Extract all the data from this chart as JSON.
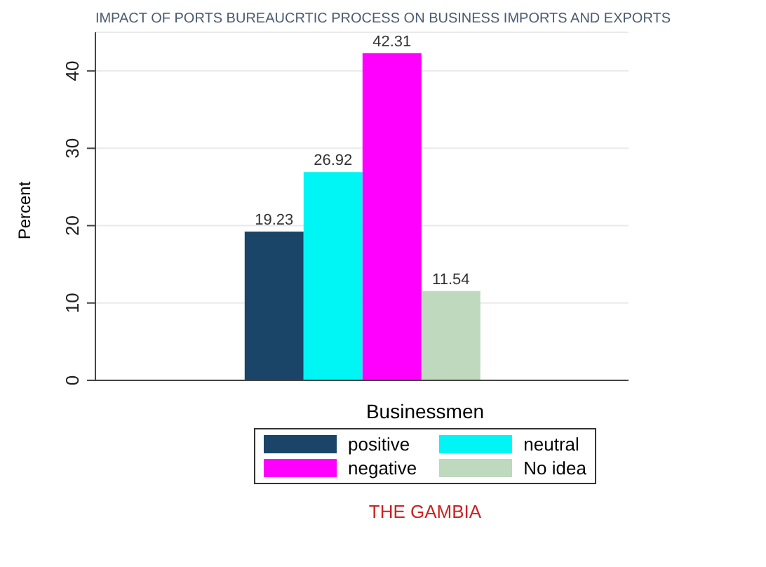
{
  "chart_data": {
    "type": "bar",
    "title": "IMPACT OF PORTS BUREAUCRTIC PROCESS ON BUSINESS IMPORTS AND EXPORTS",
    "xlabel": "Businessmen",
    "ylabel": "Percent",
    "categories": [
      null
    ],
    "series": [
      {
        "name": "positive",
        "color": "#1a4568",
        "values": [
          19.23
        ]
      },
      {
        "name": "neutral",
        "color": "#00f5f5",
        "values": [
          26.92
        ]
      },
      {
        "name": "negative",
        "color": "#ff00ff",
        "values": [
          42.31
        ]
      },
      {
        "name": "No idea",
        "color": "#bfd9bf",
        "values": [
          11.54
        ]
      }
    ],
    "ylim": [
      0,
      45
    ],
    "yticks": [
      0,
      10,
      20,
      30,
      40
    ],
    "grid": "y",
    "legend": "bottom",
    "data_labels": true,
    "annotations": [
      "THE GAMBIA"
    ]
  }
}
